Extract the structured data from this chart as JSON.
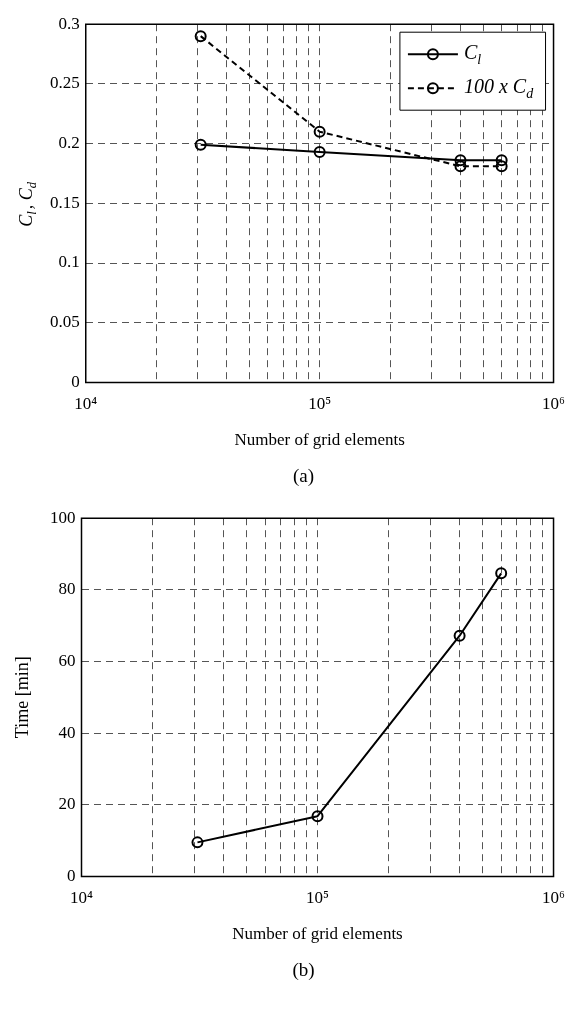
{
  "chart_data": [
    {
      "type": "line",
      "title": "(a)",
      "xlabel": "Number of grid elements",
      "ylabel": "C$_{l}$, C$_{d}$",
      "x": [
        31000,
        100000,
        400000,
        600000
      ],
      "series": [
        {
          "name": "C$_{l}$",
          "color": "#000000",
          "values": [
            0.199,
            0.193,
            0.186,
            0.186
          ],
          "line_style": "solid"
        },
        {
          "name": "100 x C$_{d}$",
          "color": "#000000",
          "values": [
            0.29,
            0.21,
            0.181,
            0.181
          ],
          "line_style": "dashed"
        }
      ],
      "log": "x",
      "xlim": [
        10000,
        1000000
      ],
      "xticks": [
        {
          "value": 10000,
          "label": "10⁴"
        },
        {
          "value": 20000,
          "label": null
        },
        {
          "value": 30000,
          "label": null
        },
        {
          "value": 40000,
          "label": null
        },
        {
          "value": 50000,
          "label": null
        },
        {
          "value": 60000,
          "label": null
        },
        {
          "value": 70000,
          "label": null
        },
        {
          "value": 80000,
          "label": null
        },
        {
          "value": 90000,
          "label": null
        },
        {
          "value": 100000,
          "label": "10⁵"
        },
        {
          "value": 200000,
          "label": null
        },
        {
          "value": 300000,
          "label": null
        },
        {
          "value": 400000,
          "label": null
        },
        {
          "value": 500000,
          "label": null
        },
        {
          "value": 600000,
          "label": null
        },
        {
          "value": 700000,
          "label": null
        },
        {
          "value": 800000,
          "label": null
        },
        {
          "value": 900000,
          "label": null
        },
        {
          "value": 1000000,
          "label": "10⁶"
        }
      ],
      "ylim": [
        0,
        0.3
      ],
      "yticks": [
        0,
        0.05,
        0.1,
        0.15,
        0.2,
        0.25,
        0.3
      ],
      "grid": true,
      "legend": "top right",
      "marker": "circle"
    },
    {
      "type": "line",
      "title": "(b)",
      "xlabel": "Number of grid elements",
      "ylabel": "Time [min]",
      "x": [
        31000,
        100000,
        400000,
        600000
      ],
      "series": [
        {
          "color": "#000000",
          "values": [
            9.5,
            16.8,
            67.2,
            84.6
          ],
          "line_style": "solid"
        }
      ],
      "log": "x",
      "xlim": [
        10000,
        1000000
      ],
      "xticks": [
        {
          "value": 10000,
          "label": "10⁴"
        },
        {
          "value": 20000,
          "label": null
        },
        {
          "value": 30000,
          "label": null
        },
        {
          "value": 40000,
          "label": null
        },
        {
          "value": 50000,
          "label": null
        },
        {
          "value": 60000,
          "label": null
        },
        {
          "value": 70000,
          "label": null
        },
        {
          "value": 80000,
          "label": null
        },
        {
          "value": 90000,
          "label": null
        },
        {
          "value": 100000,
          "label": "10⁵"
        },
        {
          "value": 200000,
          "label": null
        },
        {
          "value": 300000,
          "label": null
        },
        {
          "value": 400000,
          "label": null
        },
        {
          "value": 500000,
          "label": null
        },
        {
          "value": 600000,
          "label": null
        },
        {
          "value": 700000,
          "label": null
        },
        {
          "value": 800000,
          "label": null
        },
        {
          "value": 900000,
          "label": null
        },
        {
          "value": 1000000,
          "label": "10⁶"
        }
      ],
      "ylim": [
        0,
        100
      ],
      "yticks": [
        0,
        20,
        40,
        60,
        80,
        100
      ],
      "grid": true,
      "legend": false,
      "marker": "circle"
    }
  ]
}
